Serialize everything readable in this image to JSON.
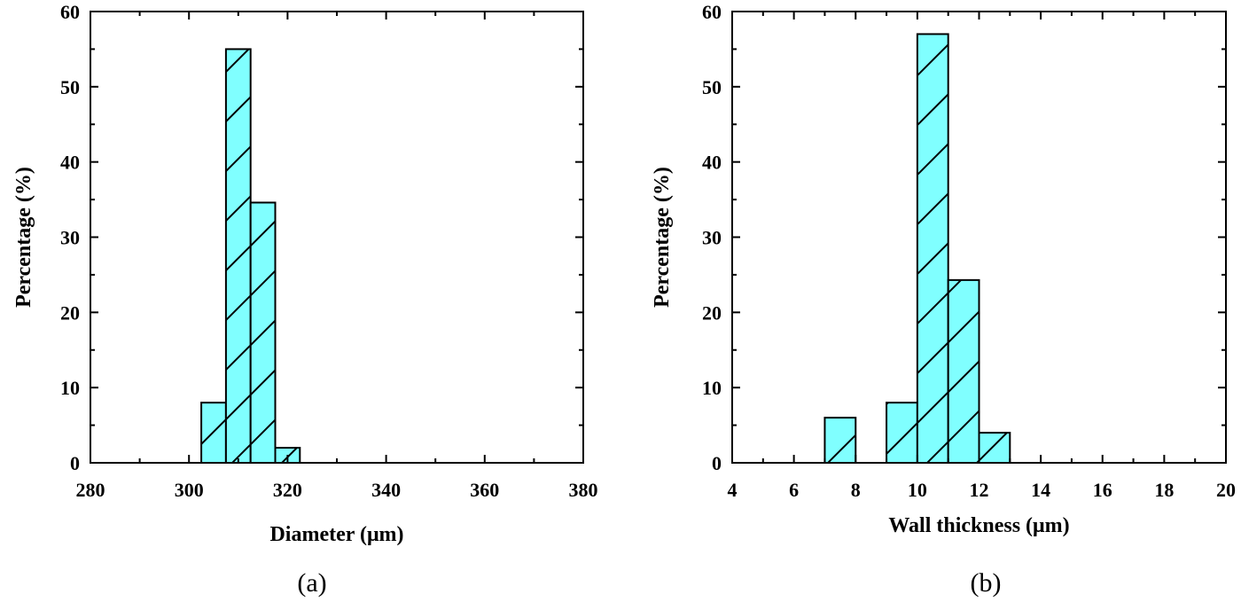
{
  "chart_data": [
    {
      "type": "bar",
      "caption": "(a)",
      "xlabel": "Diameter (μm)",
      "ylabel": "Percentage (%)",
      "xlim": [
        280,
        380
      ],
      "ylim": [
        0,
        60
      ],
      "xticks": [
        280,
        300,
        320,
        340,
        360,
        380
      ],
      "yticks": [
        0,
        10,
        20,
        30,
        40,
        50,
        60
      ],
      "fill_color": "#80ffff",
      "grid": false,
      "bins": [
        {
          "start": 302.5,
          "end": 307.5,
          "value": 8
        },
        {
          "start": 307.5,
          "end": 312.5,
          "value": 55
        },
        {
          "start": 312.5,
          "end": 317.5,
          "value": 34.6
        },
        {
          "start": 317.5,
          "end": 322.5,
          "value": 2
        }
      ]
    },
    {
      "type": "bar",
      "caption": "(b)",
      "xlabel": "Wall thickness (μm)",
      "ylabel": "Percentage (%)",
      "xlim": [
        4,
        20
      ],
      "ylim": [
        0,
        60
      ],
      "xticks": [
        4,
        6,
        8,
        10,
        12,
        14,
        16,
        18,
        20
      ],
      "yticks": [
        0,
        10,
        20,
        30,
        40,
        50,
        60
      ],
      "fill_color": "#80ffff",
      "grid": false,
      "bins": [
        {
          "start": 7,
          "end": 8,
          "value": 6
        },
        {
          "start": 9,
          "end": 10,
          "value": 8
        },
        {
          "start": 10,
          "end": 11,
          "value": 57
        },
        {
          "start": 11,
          "end": 12,
          "value": 24.3
        },
        {
          "start": 12,
          "end": 13,
          "value": 4
        }
      ]
    }
  ]
}
